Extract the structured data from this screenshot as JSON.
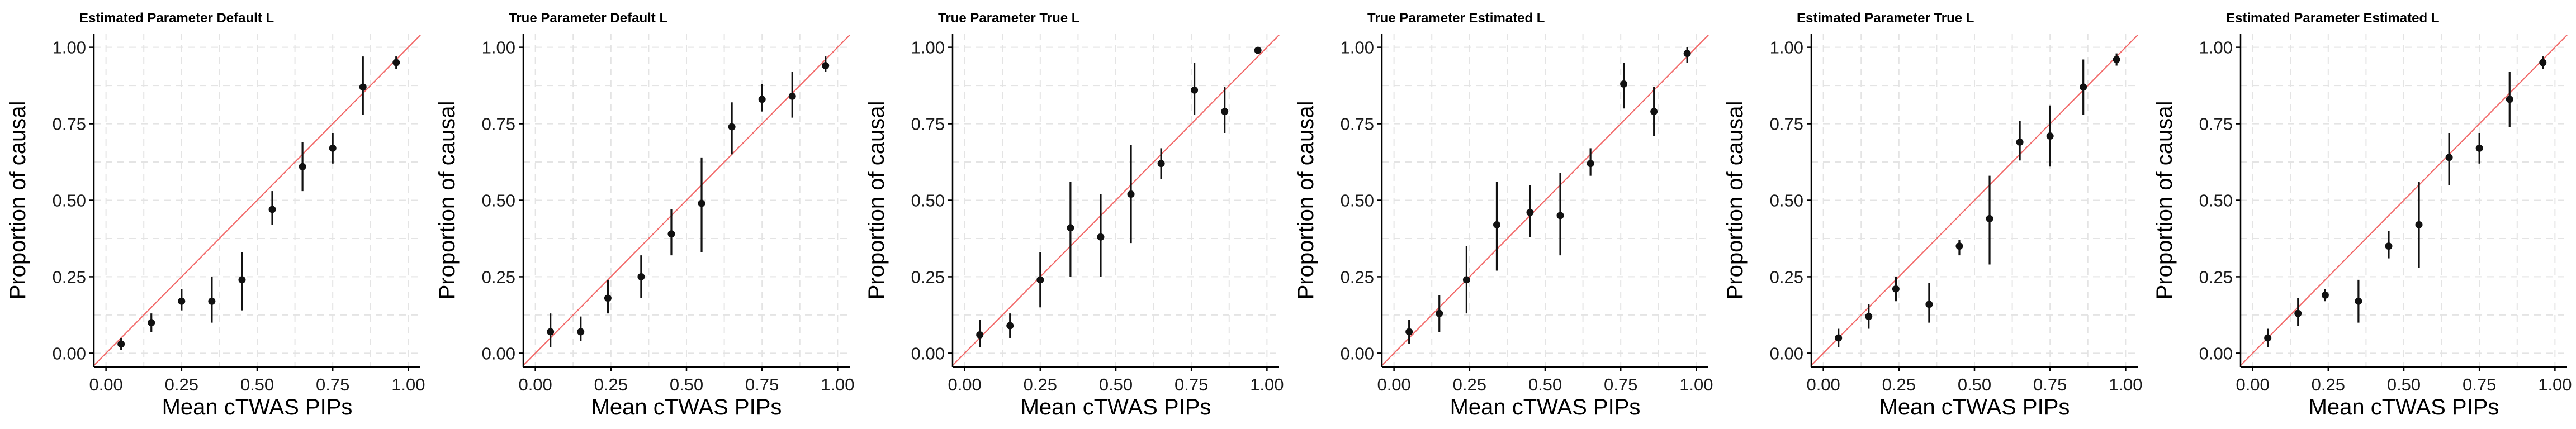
{
  "colors": {
    "points": "#111111",
    "reference_line": "#f26a6a",
    "grid": "#e4e4e4",
    "background": "#ffffff"
  },
  "chart_data": [
    {
      "type": "scatter",
      "title": "Estimated Parameter Default L",
      "xlabel": "Mean cTWAS PIPs",
      "ylabel": "Proportion of causal",
      "xlim": [
        0,
        1
      ],
      "ylim": [
        0,
        1
      ],
      "xticks": [
        "0.00",
        "0.25",
        "0.50",
        "0.75",
        "1.00"
      ],
      "yticks": [
        "0.00",
        "0.25",
        "0.50",
        "0.75",
        "1.00"
      ],
      "grid": true,
      "reference_line": "y = x",
      "points": [
        {
          "x": 0.05,
          "y": 0.03,
          "lo": 0.01,
          "hi": 0.05
        },
        {
          "x": 0.15,
          "y": 0.1,
          "lo": 0.07,
          "hi": 0.13
        },
        {
          "x": 0.25,
          "y": 0.17,
          "lo": 0.14,
          "hi": 0.21
        },
        {
          "x": 0.35,
          "y": 0.17,
          "lo": 0.1,
          "hi": 0.25
        },
        {
          "x": 0.45,
          "y": 0.24,
          "lo": 0.14,
          "hi": 0.33
        },
        {
          "x": 0.55,
          "y": 0.47,
          "lo": 0.42,
          "hi": 0.53
        },
        {
          "x": 0.65,
          "y": 0.61,
          "lo": 0.53,
          "hi": 0.69
        },
        {
          "x": 0.75,
          "y": 0.67,
          "lo": 0.62,
          "hi": 0.72
        },
        {
          "x": 0.85,
          "y": 0.87,
          "lo": 0.78,
          "hi": 0.97
        },
        {
          "x": 0.96,
          "y": 0.95,
          "lo": 0.93,
          "hi": 0.97
        }
      ]
    },
    {
      "type": "scatter",
      "title": "True Parameter Default L",
      "xlabel": "Mean cTWAS PIPs",
      "ylabel": "Proportion of causal",
      "xlim": [
        0,
        1
      ],
      "ylim": [
        0,
        1
      ],
      "xticks": [
        "0.00",
        "0.25",
        "0.50",
        "0.75",
        "1.00"
      ],
      "yticks": [
        "0.00",
        "0.25",
        "0.50",
        "0.75",
        "1.00"
      ],
      "grid": true,
      "reference_line": "y = x",
      "points": [
        {
          "x": 0.05,
          "y": 0.07,
          "lo": 0.02,
          "hi": 0.13
        },
        {
          "x": 0.15,
          "y": 0.07,
          "lo": 0.04,
          "hi": 0.12
        },
        {
          "x": 0.24,
          "y": 0.18,
          "lo": 0.13,
          "hi": 0.24
        },
        {
          "x": 0.35,
          "y": 0.25,
          "lo": 0.18,
          "hi": 0.32
        },
        {
          "x": 0.45,
          "y": 0.39,
          "lo": 0.32,
          "hi": 0.47
        },
        {
          "x": 0.55,
          "y": 0.49,
          "lo": 0.33,
          "hi": 0.64
        },
        {
          "x": 0.65,
          "y": 0.74,
          "lo": 0.65,
          "hi": 0.82
        },
        {
          "x": 0.75,
          "y": 0.83,
          "lo": 0.79,
          "hi": 0.88
        },
        {
          "x": 0.85,
          "y": 0.84,
          "lo": 0.77,
          "hi": 0.92
        },
        {
          "x": 0.96,
          "y": 0.94,
          "lo": 0.92,
          "hi": 0.97
        }
      ]
    },
    {
      "type": "scatter",
      "title": "True Parameter True L",
      "xlabel": "Mean cTWAS PIPs",
      "ylabel": "Proportion of causal",
      "xlim": [
        0,
        1
      ],
      "ylim": [
        0,
        1
      ],
      "xticks": [
        "0.00",
        "0.25",
        "0.50",
        "0.75",
        "1.00"
      ],
      "yticks": [
        "0.00",
        "0.25",
        "0.50",
        "0.75",
        "1.00"
      ],
      "grid": true,
      "reference_line": "y = x",
      "points": [
        {
          "x": 0.05,
          "y": 0.06,
          "lo": 0.02,
          "hi": 0.11
        },
        {
          "x": 0.15,
          "y": 0.09,
          "lo": 0.05,
          "hi": 0.13
        },
        {
          "x": 0.25,
          "y": 0.24,
          "lo": 0.15,
          "hi": 0.33
        },
        {
          "x": 0.35,
          "y": 0.41,
          "lo": 0.25,
          "hi": 0.56
        },
        {
          "x": 0.45,
          "y": 0.38,
          "lo": 0.25,
          "hi": 0.52
        },
        {
          "x": 0.55,
          "y": 0.52,
          "lo": 0.36,
          "hi": 0.68
        },
        {
          "x": 0.65,
          "y": 0.62,
          "lo": 0.57,
          "hi": 0.67
        },
        {
          "x": 0.76,
          "y": 0.86,
          "lo": 0.78,
          "hi": 0.95
        },
        {
          "x": 0.86,
          "y": 0.79,
          "lo": 0.72,
          "hi": 0.87
        },
        {
          "x": 0.97,
          "y": 0.99,
          "lo": 0.99,
          "hi": 1.0
        }
      ]
    },
    {
      "type": "scatter",
      "title": "True Parameter Estimated L",
      "xlabel": "Mean cTWAS PIPs",
      "ylabel": "Proportion of causal",
      "xlim": [
        0,
        1
      ],
      "ylim": [
        0,
        1
      ],
      "xticks": [
        "0.00",
        "0.25",
        "0.50",
        "0.75",
        "1.00"
      ],
      "yticks": [
        "0.00",
        "0.25",
        "0.50",
        "0.75",
        "1.00"
      ],
      "grid": true,
      "reference_line": "y = x",
      "points": [
        {
          "x": 0.05,
          "y": 0.07,
          "lo": 0.03,
          "hi": 0.11
        },
        {
          "x": 0.15,
          "y": 0.13,
          "lo": 0.07,
          "hi": 0.19
        },
        {
          "x": 0.24,
          "y": 0.24,
          "lo": 0.13,
          "hi": 0.35
        },
        {
          "x": 0.34,
          "y": 0.42,
          "lo": 0.27,
          "hi": 0.56
        },
        {
          "x": 0.45,
          "y": 0.46,
          "lo": 0.38,
          "hi": 0.55
        },
        {
          "x": 0.55,
          "y": 0.45,
          "lo": 0.32,
          "hi": 0.59
        },
        {
          "x": 0.65,
          "y": 0.62,
          "lo": 0.58,
          "hi": 0.67
        },
        {
          "x": 0.76,
          "y": 0.88,
          "lo": 0.8,
          "hi": 0.95
        },
        {
          "x": 0.86,
          "y": 0.79,
          "lo": 0.71,
          "hi": 0.87
        },
        {
          "x": 0.97,
          "y": 0.98,
          "lo": 0.95,
          "hi": 1.0
        }
      ]
    },
    {
      "type": "scatter",
      "title": "Estimated Parameter True L",
      "xlabel": "Mean cTWAS PIPs",
      "ylabel": "Proportion of causal",
      "xlim": [
        0,
        1
      ],
      "ylim": [
        0,
        1
      ],
      "xticks": [
        "0.00",
        "0.25",
        "0.50",
        "0.75",
        "1.00"
      ],
      "yticks": [
        "0.00",
        "0.25",
        "0.50",
        "0.75",
        "1.00"
      ],
      "grid": true,
      "reference_line": "y = x",
      "points": [
        {
          "x": 0.05,
          "y": 0.05,
          "lo": 0.02,
          "hi": 0.08
        },
        {
          "x": 0.15,
          "y": 0.12,
          "lo": 0.08,
          "hi": 0.16
        },
        {
          "x": 0.24,
          "y": 0.21,
          "lo": 0.17,
          "hi": 0.25
        },
        {
          "x": 0.35,
          "y": 0.16,
          "lo": 0.1,
          "hi": 0.23
        },
        {
          "x": 0.45,
          "y": 0.35,
          "lo": 0.32,
          "hi": 0.37
        },
        {
          "x": 0.55,
          "y": 0.44,
          "lo": 0.29,
          "hi": 0.58
        },
        {
          "x": 0.65,
          "y": 0.69,
          "lo": 0.63,
          "hi": 0.76
        },
        {
          "x": 0.75,
          "y": 0.71,
          "lo": 0.61,
          "hi": 0.81
        },
        {
          "x": 0.86,
          "y": 0.87,
          "lo": 0.78,
          "hi": 0.96
        },
        {
          "x": 0.97,
          "y": 0.96,
          "lo": 0.94,
          "hi": 0.98
        }
      ]
    },
    {
      "type": "scatter",
      "title": "Estimated Parameter Estimated L",
      "xlabel": "Mean cTWAS PIPs",
      "ylabel": "Proportion of causal",
      "xlim": [
        0,
        1
      ],
      "ylim": [
        0,
        1
      ],
      "xticks": [
        "0.00",
        "0.25",
        "0.50",
        "0.75",
        "1.00"
      ],
      "yticks": [
        "0.00",
        "0.25",
        "0.50",
        "0.75",
        "1.00"
      ],
      "grid": true,
      "reference_line": "y = x",
      "points": [
        {
          "x": 0.05,
          "y": 0.05,
          "lo": 0.02,
          "hi": 0.08
        },
        {
          "x": 0.15,
          "y": 0.13,
          "lo": 0.09,
          "hi": 0.18
        },
        {
          "x": 0.24,
          "y": 0.19,
          "lo": 0.17,
          "hi": 0.21
        },
        {
          "x": 0.35,
          "y": 0.17,
          "lo": 0.1,
          "hi": 0.24
        },
        {
          "x": 0.45,
          "y": 0.35,
          "lo": 0.31,
          "hi": 0.4
        },
        {
          "x": 0.55,
          "y": 0.42,
          "lo": 0.28,
          "hi": 0.56
        },
        {
          "x": 0.65,
          "y": 0.64,
          "lo": 0.55,
          "hi": 0.72
        },
        {
          "x": 0.75,
          "y": 0.67,
          "lo": 0.62,
          "hi": 0.72
        },
        {
          "x": 0.85,
          "y": 0.83,
          "lo": 0.74,
          "hi": 0.92
        },
        {
          "x": 0.96,
          "y": 0.95,
          "lo": 0.93,
          "hi": 0.97
        }
      ]
    }
  ]
}
